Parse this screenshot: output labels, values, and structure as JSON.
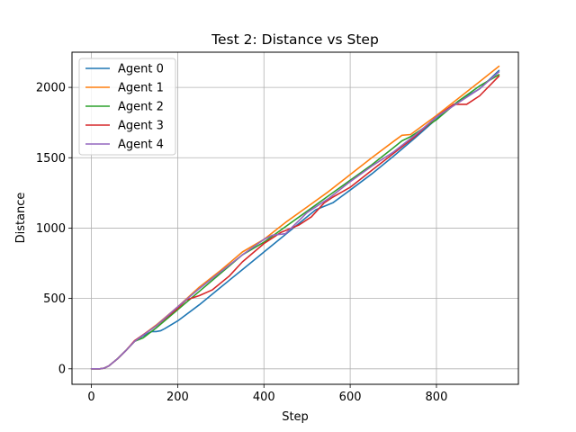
{
  "chart_data": {
    "type": "line",
    "title": "Test 2: Distance vs Step",
    "xlabel": "Step",
    "ylabel": "Distance",
    "xlim": [
      -45,
      990
    ],
    "ylim": [
      -110,
      2250
    ],
    "xticks": [
      0,
      200,
      400,
      600,
      800
    ],
    "yticks": [
      0,
      500,
      1000,
      1500,
      2000
    ],
    "grid": true,
    "legend": "top-left",
    "series": [
      {
        "name": "Agent 0",
        "color": "#1f77b4",
        "x": [
          0,
          20,
          30,
          40,
          60,
          80,
          100,
          120,
          140,
          150,
          160,
          170,
          200,
          250,
          300,
          350,
          400,
          450,
          500,
          520,
          560,
          600,
          650,
          700,
          750,
          800,
          850,
          900,
          945
        ],
        "y": [
          0,
          0,
          5,
          20,
          70,
          130,
          195,
          235,
          265,
          265,
          270,
          285,
          340,
          455,
          580,
          705,
          830,
          955,
          1080,
          1130,
          1180,
          1270,
          1385,
          1510,
          1640,
          1775,
          1900,
          1990,
          2120
        ]
      },
      {
        "name": "Agent 1",
        "color": "#ff7f0e",
        "x": [
          0,
          20,
          30,
          40,
          60,
          80,
          100,
          150,
          200,
          250,
          300,
          350,
          400,
          450,
          500,
          550,
          600,
          650,
          700,
          720,
          740,
          800,
          850,
          900,
          945
        ],
        "y": [
          0,
          0,
          5,
          20,
          70,
          130,
          195,
          310,
          440,
          580,
          700,
          830,
          920,
          1040,
          1150,
          1260,
          1380,
          1500,
          1615,
          1660,
          1665,
          1800,
          1920,
          2040,
          2150
        ]
      },
      {
        "name": "Agent 2",
        "color": "#2ca02c",
        "x": [
          0,
          20,
          30,
          40,
          60,
          80,
          100,
          120,
          150,
          200,
          250,
          300,
          350,
          400,
          450,
          500,
          550,
          600,
          650,
          700,
          720,
          740,
          800,
          850,
          900,
          945
        ],
        "y": [
          0,
          0,
          5,
          20,
          70,
          130,
          195,
          220,
          290,
          420,
          550,
          680,
          810,
          900,
          1010,
          1120,
          1230,
          1340,
          1450,
          1570,
          1620,
          1650,
          1770,
          1900,
          2010,
          2090
        ]
      },
      {
        "name": "Agent 3",
        "color": "#d62728",
        "x": [
          0,
          20,
          30,
          40,
          60,
          80,
          100,
          150,
          200,
          220,
          250,
          280,
          320,
          350,
          400,
          440,
          480,
          510,
          540,
          560,
          600,
          650,
          700,
          750,
          800,
          840,
          870,
          900,
          945
        ],
        "y": [
          0,
          0,
          5,
          20,
          70,
          130,
          200,
          305,
          430,
          490,
          520,
          560,
          660,
          760,
          890,
          970,
          1020,
          1080,
          1180,
          1220,
          1290,
          1410,
          1530,
          1650,
          1790,
          1880,
          1880,
          1940,
          2080
        ]
      },
      {
        "name": "Agent 4",
        "color": "#9467bd",
        "x": [
          0,
          20,
          30,
          40,
          60,
          80,
          100,
          150,
          200,
          250,
          300,
          350,
          400,
          420,
          450,
          500,
          550,
          600,
          650,
          700,
          750,
          800,
          850,
          900,
          945
        ],
        "y": [
          0,
          0,
          5,
          20,
          70,
          130,
          195,
          305,
          440,
          570,
          690,
          810,
          920,
          950,
          960,
          1110,
          1210,
          1330,
          1440,
          1540,
          1660,
          1790,
          1890,
          1990,
          2110
        ]
      }
    ]
  }
}
